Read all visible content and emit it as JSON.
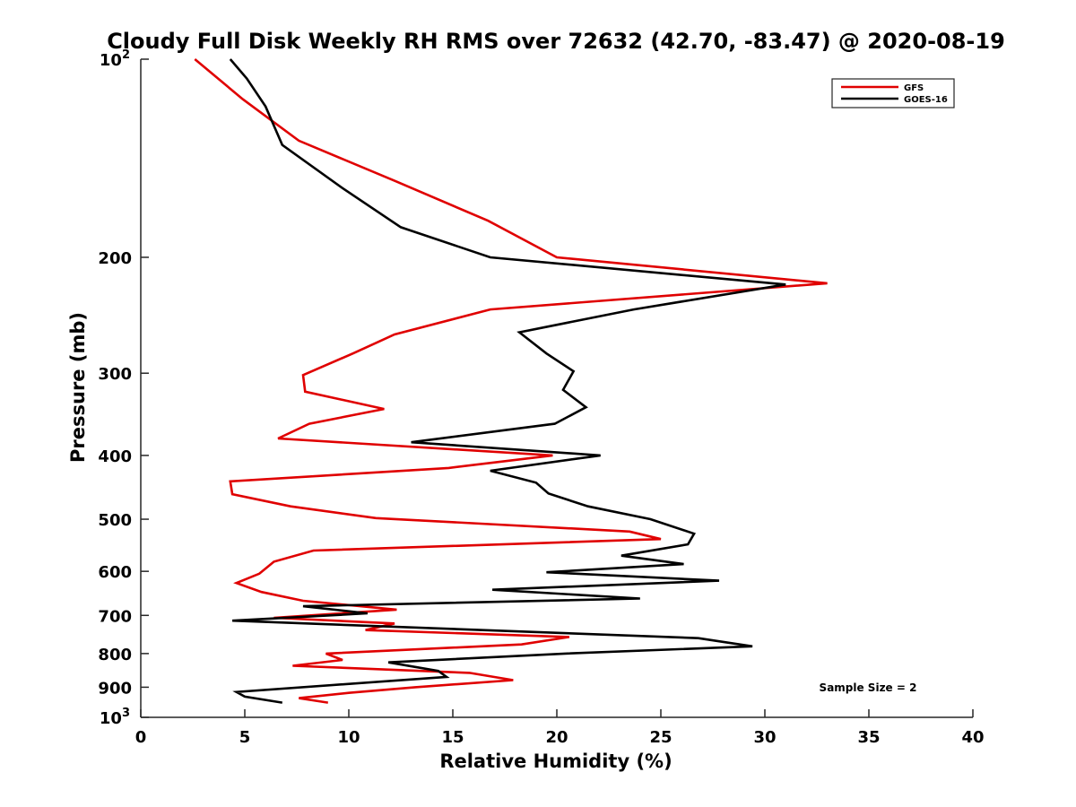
{
  "chart_data": {
    "type": "line",
    "title": "Cloudy Full Disk Weekly RH RMS over 72632 (42.70, -83.47) @ 2020-08-19",
    "xlabel": "Relative Humidity (%)",
    "ylabel": "Pressure (mb)",
    "xlim": [
      0,
      40
    ],
    "ylim": [
      100,
      1000
    ],
    "y_scale": "log",
    "y_reversed": true,
    "x_ticks": [
      0,
      5,
      10,
      15,
      20,
      25,
      30,
      35,
      40
    ],
    "y_ticks": [
      {
        "value": 200,
        "label": "200"
      },
      {
        "value": 300,
        "label": "300"
      },
      {
        "value": 400,
        "label": "400"
      },
      {
        "value": 500,
        "label": "500"
      },
      {
        "value": 600,
        "label": "600"
      },
      {
        "value": 700,
        "label": "700"
      },
      {
        "value": 800,
        "label": "800"
      },
      {
        "value": 900,
        "label": "900"
      }
    ],
    "y_edge_labels": [
      {
        "value": 100,
        "base": "10",
        "exp": "2"
      },
      {
        "value": 1000,
        "base": "10",
        "exp": "3"
      }
    ],
    "grid": false,
    "legend_position": "top-right",
    "annotation": "Sample Size = 2",
    "series": [
      {
        "name": "GFS",
        "color": "#e00000",
        "points": [
          [
            2.6,
            100
          ],
          [
            4.9,
            115
          ],
          [
            7.6,
            133
          ],
          [
            12.2,
            153
          ],
          [
            16.7,
            176
          ],
          [
            20.0,
            200
          ],
          [
            33.0,
            219
          ],
          [
            16.8,
            240
          ],
          [
            12.2,
            262
          ],
          [
            10.2,
            280
          ],
          [
            7.8,
            302
          ],
          [
            7.9,
            320
          ],
          [
            11.7,
            340
          ],
          [
            8.1,
            358
          ],
          [
            6.6,
            377
          ],
          [
            19.8,
            400
          ],
          [
            14.8,
            418
          ],
          [
            4.3,
            438
          ],
          [
            4.4,
            458
          ],
          [
            7.2,
            478
          ],
          [
            11.3,
            498
          ],
          [
            23.5,
            522
          ],
          [
            25.0,
            536
          ],
          [
            8.3,
            558
          ],
          [
            6.4,
            580
          ],
          [
            5.7,
            605
          ],
          [
            4.6,
            625
          ],
          [
            5.8,
            645
          ],
          [
            7.8,
            665
          ],
          [
            12.3,
            686
          ],
          [
            6.4,
            706
          ],
          [
            12.2,
            720
          ],
          [
            10.8,
            737
          ],
          [
            20.6,
            755
          ],
          [
            18.3,
            775
          ],
          [
            8.9,
            800
          ],
          [
            9.7,
            818
          ],
          [
            7.3,
            835
          ],
          [
            15.8,
            856
          ],
          [
            17.9,
            878
          ],
          [
            13.2,
            900
          ],
          [
            10.0,
            918
          ],
          [
            7.6,
            935
          ],
          [
            9.0,
            950
          ]
        ]
      },
      {
        "name": "GOES-16",
        "color": "#000000",
        "points": [
          [
            4.3,
            100
          ],
          [
            5.1,
            107
          ],
          [
            6.0,
            118
          ],
          [
            6.8,
            135
          ],
          [
            9.7,
            157
          ],
          [
            12.5,
            180
          ],
          [
            16.8,
            200
          ],
          [
            31.0,
            220
          ],
          [
            23.7,
            240
          ],
          [
            18.2,
            260
          ],
          [
            19.5,
            280
          ],
          [
            20.8,
            298
          ],
          [
            20.3,
            318
          ],
          [
            21.4,
            338
          ],
          [
            19.9,
            358
          ],
          [
            13.0,
            382
          ],
          [
            22.1,
            400
          ],
          [
            16.8,
            422
          ],
          [
            19.0,
            440
          ],
          [
            19.6,
            457
          ],
          [
            21.5,
            478
          ],
          [
            24.5,
            500
          ],
          [
            26.6,
            526
          ],
          [
            26.3,
            546
          ],
          [
            23.1,
            568
          ],
          [
            26.1,
            585
          ],
          [
            19.5,
            602
          ],
          [
            27.8,
            620
          ],
          [
            16.9,
            640
          ],
          [
            24.0,
            660
          ],
          [
            7.8,
            678
          ],
          [
            10.9,
            695
          ],
          [
            4.4,
            713
          ],
          [
            26.8,
            758
          ],
          [
            29.4,
            780
          ],
          [
            20.4,
            800
          ],
          [
            11.9,
            825
          ],
          [
            14.3,
            850
          ],
          [
            14.7,
            868
          ],
          [
            4.6,
            915
          ],
          [
            5.0,
            930
          ],
          [
            6.8,
            950
          ]
        ]
      }
    ]
  }
}
